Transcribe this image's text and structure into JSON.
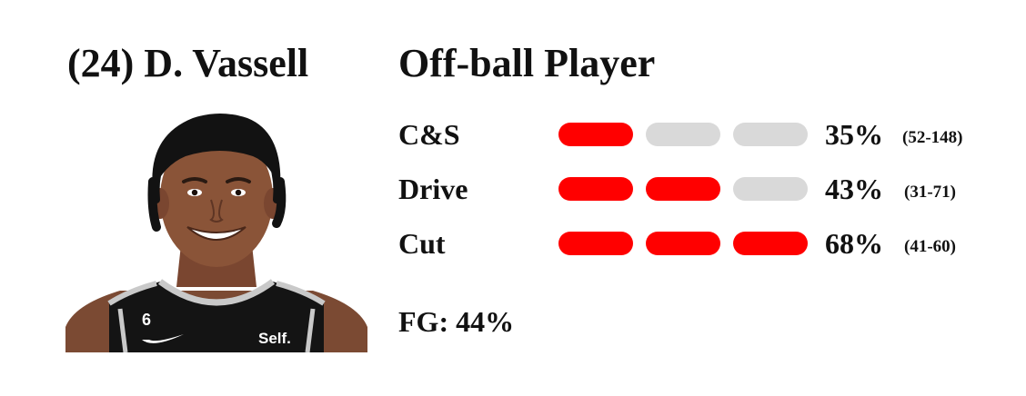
{
  "header": {
    "player": "(24) D. Vassell",
    "role": "Off-ball Player"
  },
  "photo": {
    "jersey_number": "6",
    "sponsor": "Self."
  },
  "stats": [
    {
      "label": "C&S",
      "pct": "35%",
      "range": "(52-148)",
      "level": 1,
      "max": 3
    },
    {
      "label": "Drive",
      "pct": "43%",
      "range": "(31-71)",
      "level": 2,
      "max": 3
    },
    {
      "label": "Cut",
      "pct": "68%",
      "range": "(41-60)",
      "level": 3,
      "max": 3
    }
  ],
  "fg": "FG: 44%",
  "colors": {
    "filled": "#ff0000",
    "empty": "#d9d9d9",
    "text": "#111111"
  }
}
